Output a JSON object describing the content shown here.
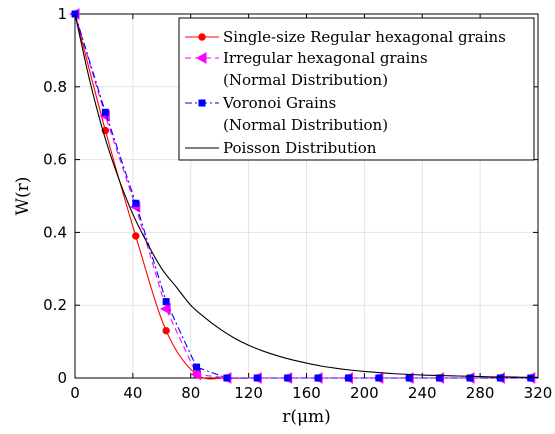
{
  "chart_data": {
    "type": "line",
    "xlabel": "r(μm)",
    "ylabel": "W(r)",
    "xlim": [
      0,
      320
    ],
    "ylim": [
      0,
      1
    ],
    "xticks": [
      0,
      40,
      80,
      120,
      160,
      200,
      240,
      280,
      320
    ],
    "yticks": [
      0,
      0.2,
      0.4,
      0.6,
      0.8,
      1
    ],
    "xtick_labels": [
      "0",
      "40",
      "80",
      "120",
      "160",
      "200",
      "240",
      "280",
      "320"
    ],
    "ytick_labels": [
      "0",
      "0.2",
      "0.4",
      "0.6",
      "0.8",
      "1"
    ],
    "grid": true,
    "legend_position": "top-right",
    "series": [
      {
        "name": "Single-size Regular hexagonal grains",
        "color": "#ff0000",
        "line_style": "solid",
        "marker": "circle",
        "x": [
          0,
          21,
          42,
          63,
          84,
          105,
          126,
          147,
          168,
          189,
          210,
          231,
          252,
          273,
          294,
          315
        ],
        "y": [
          1,
          0.68,
          0.39,
          0.13,
          0.01,
          0,
          0,
          0,
          0,
          0,
          0,
          0,
          0,
          0,
          0,
          0
        ]
      },
      {
        "name": "Irregular hexagonal grains (Normal Distribution)",
        "color": "#ff00ff",
        "line_style": "dashed",
        "marker": "triangle-left",
        "x": [
          0,
          21,
          42,
          63,
          84,
          105,
          126,
          147,
          168,
          189,
          210,
          231,
          252,
          273,
          294,
          315
        ],
        "y": [
          1,
          0.72,
          0.47,
          0.19,
          0.01,
          0,
          0,
          0,
          0,
          0,
          0,
          0,
          0,
          0,
          0,
          0
        ]
      },
      {
        "name": "Voronoi Grains (Normal Distribution)",
        "color": "#0000ff",
        "line_style": "dashdot",
        "marker": "square",
        "x": [
          0,
          21,
          42,
          63,
          84,
          105,
          126,
          147,
          168,
          189,
          210,
          231,
          252,
          273,
          294,
          315
        ],
        "y": [
          1,
          0.73,
          0.48,
          0.21,
          0.03,
          0,
          0,
          0,
          0,
          0,
          0,
          0,
          0,
          0,
          0,
          0
        ]
      },
      {
        "name": "Poisson Distribution",
        "color": "#000000",
        "line_style": "solid",
        "marker": "none",
        "x": [
          0,
          10,
          20,
          30,
          40,
          50,
          60,
          70,
          80,
          90,
          100,
          110,
          120,
          130,
          140,
          150,
          160,
          170,
          180,
          190,
          200,
          210,
          220,
          230,
          240,
          250,
          260,
          270,
          280,
          290,
          300,
          310,
          320
        ],
        "y": [
          1,
          0.82,
          0.67,
          0.55,
          0.45,
          0.37,
          0.3,
          0.25,
          0.2,
          0.165,
          0.135,
          0.11,
          0.09,
          0.074,
          0.061,
          0.05,
          0.041,
          0.033,
          0.027,
          0.022,
          0.018,
          0.015,
          0.012,
          0.01,
          0.008,
          0.007,
          0.006,
          0.005,
          0.004,
          0.003,
          0.003,
          0.002,
          0.002
        ]
      }
    ],
    "legend_entries": [
      {
        "line1": "Single-size Regular hexagonal grains",
        "line2": ""
      },
      {
        "line1": "Irregular hexagonal grains",
        "line2": "(Normal Distribution)"
      },
      {
        "line1": "Voronoi Grains",
        "line2": "(Normal Distribution)"
      },
      {
        "line1": "Poisson Distribution",
        "line2": ""
      }
    ]
  }
}
